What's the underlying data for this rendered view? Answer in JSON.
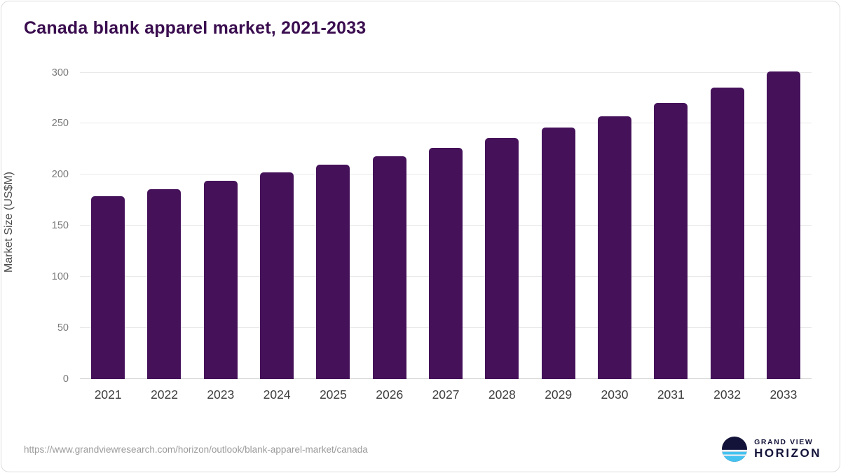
{
  "chart_data": {
    "type": "bar",
    "title": "Canada blank apparel market, 2021-2033",
    "categories": [
      "2021",
      "2022",
      "2023",
      "2024",
      "2025",
      "2026",
      "2027",
      "2028",
      "2029",
      "2030",
      "2031",
      "2032",
      "2033"
    ],
    "values": [
      179,
      186,
      194,
      202,
      210,
      218,
      226,
      236,
      246,
      257,
      270,
      285,
      301
    ],
    "xlabel": "",
    "ylabel": "Market Size (US$M)",
    "ylim": [
      0,
      310
    ],
    "yticks": [
      0,
      50,
      100,
      150,
      200,
      250,
      300
    ],
    "grid": true,
    "legend": "none",
    "bar_color": "#45125A"
  },
  "footer": {
    "source_url": "https://www.grandviewresearch.com/horizon/outlook/blank-apparel-market/canada",
    "brand_line1": "GRAND VIEW",
    "brand_line2": "HORIZON"
  },
  "colors": {
    "title": "#3A0D4F",
    "bar": "#45125A",
    "gridline": "#e9e9e9",
    "brand_navy": "#13133A",
    "brand_blue": "#45C2F0"
  }
}
